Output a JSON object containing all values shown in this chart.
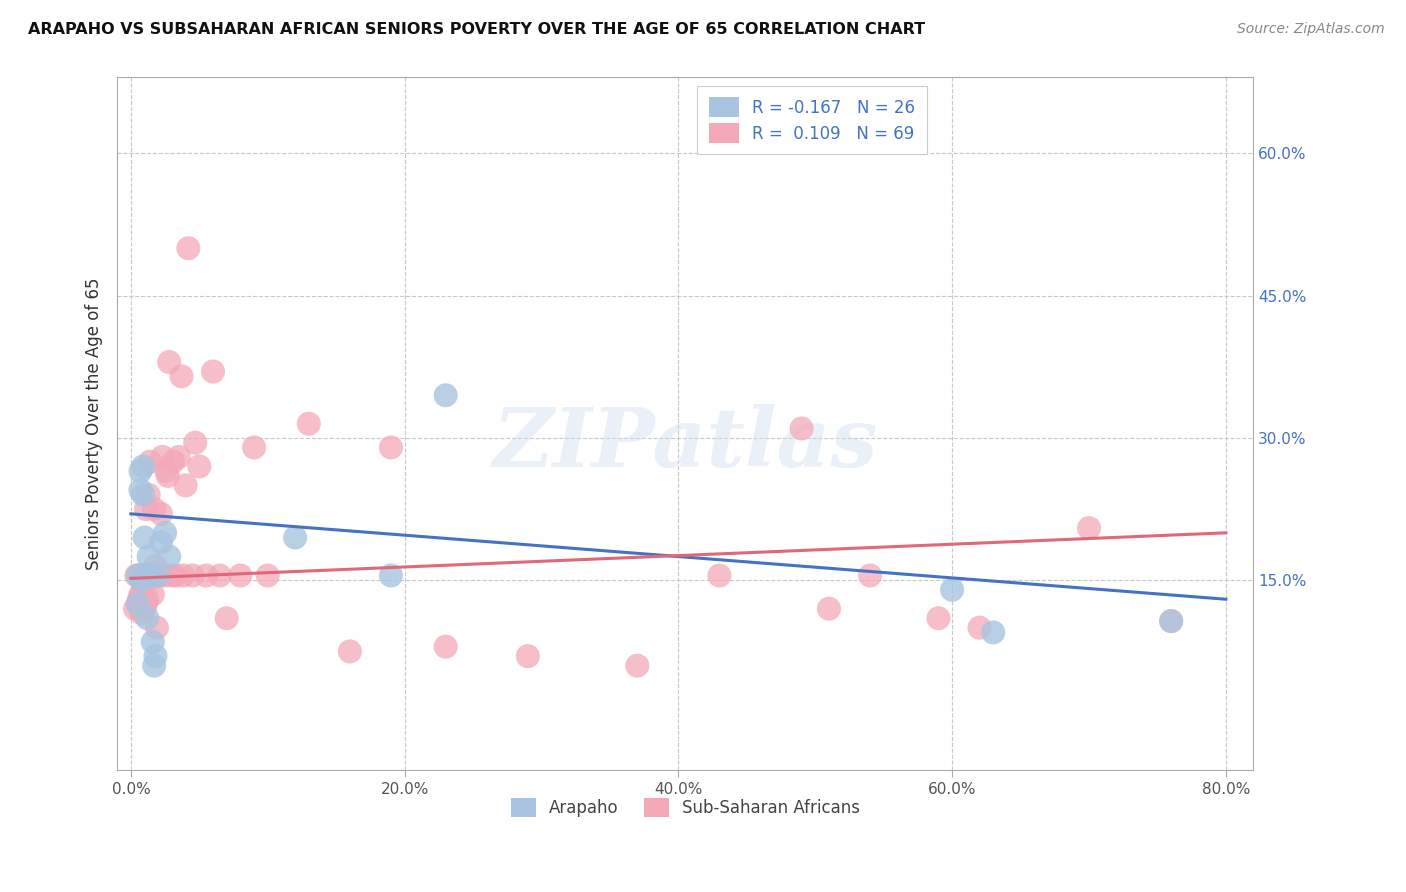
{
  "title": "ARAPAHO VS SUBSAHARAN AFRICAN SENIORS POVERTY OVER THE AGE OF 65 CORRELATION CHART",
  "source": "Source: ZipAtlas.com",
  "ylabel": "Seniors Poverty Over the Age of 65",
  "xlabel_ticks": [
    "0.0%",
    "20.0%",
    "40.0%",
    "60.0%",
    "80.0%"
  ],
  "xlabel_vals": [
    0.0,
    0.2,
    0.4,
    0.6,
    0.8
  ],
  "ylabel_ticks_right": [
    "60.0%",
    "45.0%",
    "30.0%",
    "15.0%"
  ],
  "ylabel_vals": [
    0.6,
    0.45,
    0.3,
    0.15
  ],
  "xlim": [
    -0.01,
    0.82
  ],
  "ylim": [
    -0.05,
    0.68
  ],
  "arapaho_R": -0.167,
  "arapaho_N": 26,
  "subsaharan_R": 0.109,
  "subsaharan_N": 69,
  "arapaho_color": "#a8c4e0",
  "subsaharan_color": "#f4a8b8",
  "arapaho_line_color": "#4472c4",
  "subsaharan_line_color": "#e06878",
  "legend_label_arapaho": "Arapaho",
  "legend_label_subsaharan": "Sub-Saharan Africans",
  "arapaho_x": [
    0.005,
    0.005,
    0.007,
    0.007,
    0.008,
    0.009,
    0.009,
    0.01,
    0.01,
    0.011,
    0.012,
    0.013,
    0.015,
    0.016,
    0.017,
    0.018,
    0.02,
    0.022,
    0.025,
    0.028,
    0.12,
    0.19,
    0.23,
    0.6,
    0.63,
    0.76
  ],
  "arapaho_y": [
    0.125,
    0.155,
    0.245,
    0.265,
    0.15,
    0.27,
    0.24,
    0.155,
    0.195,
    0.155,
    0.11,
    0.175,
    0.155,
    0.085,
    0.06,
    0.07,
    0.155,
    0.19,
    0.2,
    0.175,
    0.195,
    0.155,
    0.345,
    0.14,
    0.095,
    0.107
  ],
  "subsaharan_x": [
    0.003,
    0.004,
    0.005,
    0.006,
    0.006,
    0.007,
    0.007,
    0.007,
    0.008,
    0.008,
    0.008,
    0.009,
    0.009,
    0.009,
    0.01,
    0.01,
    0.01,
    0.011,
    0.011,
    0.012,
    0.012,
    0.013,
    0.014,
    0.014,
    0.015,
    0.016,
    0.017,
    0.018,
    0.019,
    0.02,
    0.021,
    0.022,
    0.023,
    0.025,
    0.026,
    0.027,
    0.028,
    0.03,
    0.031,
    0.033,
    0.035,
    0.037,
    0.038,
    0.04,
    0.042,
    0.045,
    0.047,
    0.05,
    0.055,
    0.06,
    0.065,
    0.07,
    0.08,
    0.09,
    0.1,
    0.13,
    0.16,
    0.19,
    0.23,
    0.29,
    0.37,
    0.43,
    0.49,
    0.51,
    0.54,
    0.59,
    0.62,
    0.7,
    0.76
  ],
  "subsaharan_y": [
    0.12,
    0.155,
    0.125,
    0.13,
    0.155,
    0.12,
    0.135,
    0.155,
    0.115,
    0.135,
    0.155,
    0.12,
    0.135,
    0.155,
    0.12,
    0.14,
    0.155,
    0.125,
    0.225,
    0.13,
    0.155,
    0.24,
    0.155,
    0.275,
    0.155,
    0.135,
    0.225,
    0.165,
    0.1,
    0.155,
    0.155,
    0.22,
    0.28,
    0.155,
    0.265,
    0.26,
    0.38,
    0.155,
    0.275,
    0.155,
    0.28,
    0.365,
    0.155,
    0.25,
    0.5,
    0.155,
    0.295,
    0.27,
    0.155,
    0.37,
    0.155,
    0.11,
    0.155,
    0.29,
    0.155,
    0.315,
    0.075,
    0.29,
    0.08,
    0.07,
    0.06,
    0.155,
    0.31,
    0.12,
    0.155,
    0.11,
    0.1,
    0.205,
    0.107
  ],
  "watermark": "ZIPatlas",
  "bg_color": "#ffffff",
  "grid_color": "#c8c8c8"
}
